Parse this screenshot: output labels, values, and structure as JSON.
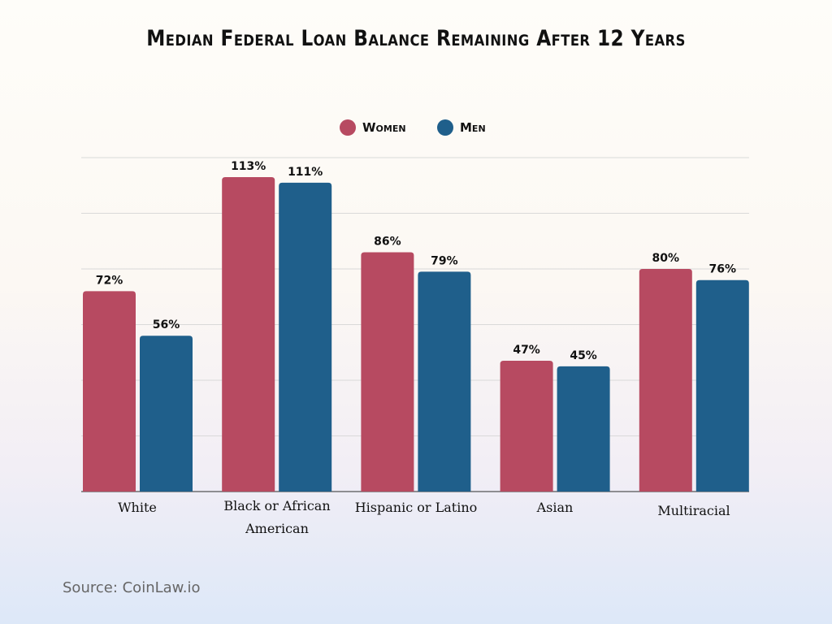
{
  "chart_data": {
    "type": "bar",
    "title": "Median Federal Loan Balance Remaining After 12 Years",
    "categories": [
      "White",
      "Black or African American",
      "Hispanic or Latino",
      "Asian",
      "Multiracial"
    ],
    "series": [
      {
        "name": "Women",
        "values": [
          72,
          113,
          86,
          47,
          80
        ],
        "color": "#b74a61"
      },
      {
        "name": "Men",
        "values": [
          56,
          111,
          79,
          45,
          76
        ],
        "color": "#1f5f8b"
      }
    ],
    "data_labels": [
      [
        "72%",
        "113%",
        "86%",
        "47%",
        "80%"
      ],
      [
        "56%",
        "111%",
        "79%",
        "45%",
        "76%"
      ]
    ],
    "unit": "%",
    "ylim": [
      0,
      120
    ],
    "grid": true,
    "legend": "top-center",
    "source": "Source: CoinLaw.io"
  }
}
